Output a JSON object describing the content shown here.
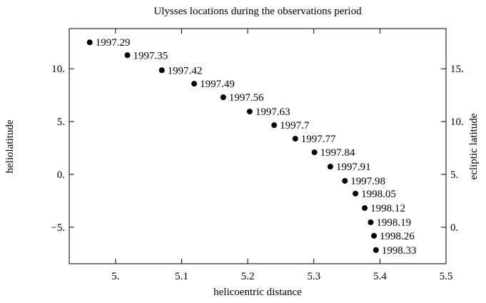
{
  "chart_data": {
    "type": "scatter",
    "title": "Ulysses locations during the observations period",
    "x_label": "helicoentric distance",
    "y_label": "heliolatitude",
    "y2_label": "ecliptic latitude",
    "color": "#000000",
    "x": [
      4.961,
      5.018,
      5.07,
      5.119,
      5.163,
      5.203,
      5.24,
      5.272,
      5.301,
      5.325,
      5.347,
      5.363,
      5.377,
      5.386,
      5.391,
      5.394
    ],
    "values": [
      12.5,
      11.28,
      9.86,
      8.58,
      7.3,
      5.95,
      4.66,
      3.38,
      2.09,
      0.74,
      -0.61,
      -1.82,
      -3.18,
      -4.53,
      -5.81,
      -7.16
    ],
    "labels": [
      "1997.29",
      "1997.35",
      "1997.42",
      "1997.49",
      "1997.56",
      "1997.63",
      "1997.7",
      "1997.77",
      "1997.84",
      "1997.91",
      "1997.98",
      "1998.05",
      "1998.12",
      "1998.19",
      "1998.26",
      "1998.33"
    ],
    "xlim": [
      4.93,
      5.5
    ],
    "xticks": [
      {
        "value": 5,
        "label": "5."
      },
      5.1,
      5.2,
      5.3,
      5.4,
      5.5
    ],
    "ylim": [
      -8.45,
      13.8
    ],
    "yticks": [
      {
        "value": 10,
        "label": "10."
      },
      {
        "value": 5,
        "label": "5."
      },
      {
        "value": 0,
        "label": "0."
      },
      {
        "value": -5,
        "label": "−5."
      }
    ],
    "y2lim": [
      -3.45,
      18.8
    ],
    "y2ticks": [
      {
        "value": 15,
        "label": "15."
      },
      {
        "value": 10,
        "label": "10."
      },
      {
        "value": 5,
        "label": "5."
      },
      {
        "value": 0,
        "label": "0."
      }
    ]
  }
}
